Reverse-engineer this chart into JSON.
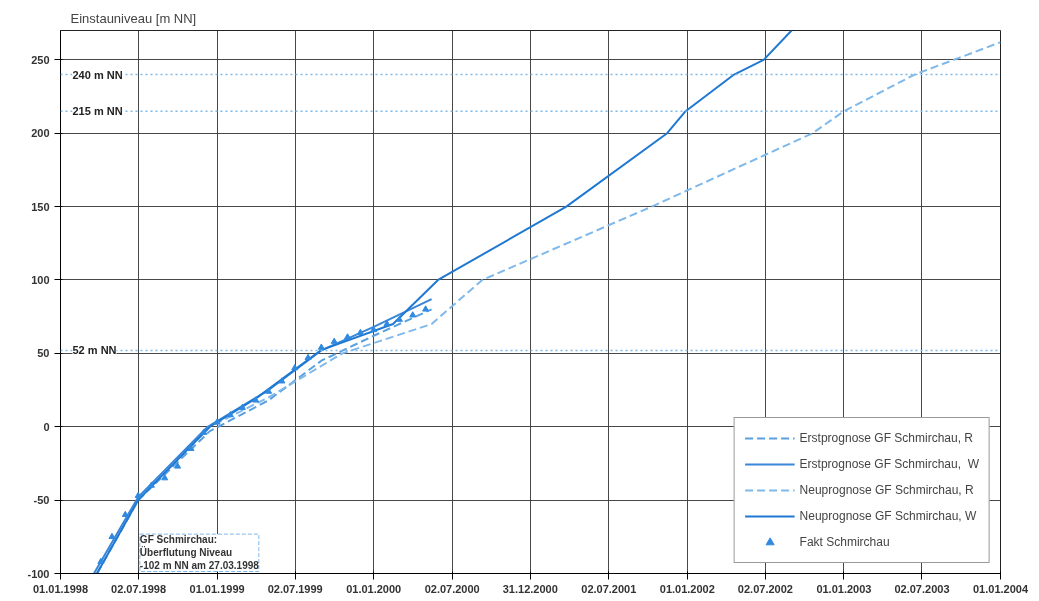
{
  "chart_data": {
    "type": "line",
    "ylabel": "Einstauniveau [m NN]",
    "xlim": [
      "1998-01-01",
      "2004-01-01"
    ],
    "ylim": [
      -100,
      270
    ],
    "xticks": [
      {
        "value": "1998-01-01",
        "label": "01.01.1998"
      },
      {
        "value": "1998-07-02",
        "label": "02.07.1998"
      },
      {
        "value": "1999-01-01",
        "label": "01.01.1999"
      },
      {
        "value": "1999-07-02",
        "label": "02.07.1999"
      },
      {
        "value": "2000-01-01",
        "label": "01.01.2000"
      },
      {
        "value": "2000-07-02",
        "label": "02.07.2000"
      },
      {
        "value": "2000-12-31",
        "label": "31.12.2000"
      },
      {
        "value": "2001-07-02",
        "label": "02.07.2001"
      },
      {
        "value": "2002-01-01",
        "label": "01.01.2002"
      },
      {
        "value": "2002-07-02",
        "label": "02.07.2002"
      },
      {
        "value": "2003-01-01",
        "label": "01.01.2003"
      },
      {
        "value": "2003-07-02",
        "label": "02.07.2003"
      },
      {
        "value": "2004-01-01",
        "label": "01.01.2004"
      }
    ],
    "yticks": [
      -100,
      -50,
      0,
      50,
      100,
      150,
      200,
      250
    ],
    "grid": true,
    "legend": "bottom right",
    "series": [
      {
        "name": "Erstprognose GF Schmirchau, R",
        "color": "#5aa0e0",
        "line_style": "dashed",
        "x": [
          "1998-03-27",
          "1998-07-01",
          "1998-12-15",
          "1999-05-01",
          "1999-09-01",
          "2000-01-01",
          "2000-05-15"
        ],
        "values": [
          -100,
          -50,
          -3,
          18,
          45,
          62,
          80
        ]
      },
      {
        "name": "Erstprognose GF Schmirchau,  W",
        "color": "#3a86d8",
        "line_style": "solid",
        "x": [
          "1998-03-20",
          "1998-07-01",
          "1998-12-10",
          "1999-05-01",
          "1999-09-01",
          "2000-01-01",
          "2000-05-15"
        ],
        "values": [
          -100,
          -48,
          0,
          25,
          52,
          68,
          87
        ]
      },
      {
        "name": "Neuprognose GF Schmirchau, R",
        "color": "#7fb8ea",
        "line_style": "dashed",
        "x": [
          "1998-03-27",
          "1998-07-01",
          "1998-12-15",
          "1999-05-01",
          "1999-10-20",
          "2000-05-15",
          "2000-09-10",
          "2001-10-10",
          "2002-10-20",
          "2003-01-01",
          "2003-06-15",
          "2004-01-01"
        ],
        "values": [
          -100,
          -50,
          0,
          20,
          50,
          70,
          100,
          150,
          200,
          215,
          240,
          262
        ]
      },
      {
        "name": "Neuprognose GF Schmirchau, W",
        "color": "#1f78d1",
        "line_style": "solid",
        "x": [
          "1998-03-27",
          "1998-07-01",
          "1998-12-15",
          "1999-04-05",
          "1999-08-30",
          "2000-02-15",
          "2000-05-30",
          "2001-03-25",
          "2001-11-15",
          "2001-12-28",
          "2002-04-20",
          "2002-06-28",
          "2002-09-01"
        ],
        "values": [
          -100,
          -50,
          0,
          20,
          52,
          70,
          100,
          150,
          200,
          215,
          240,
          250,
          270
        ]
      },
      {
        "name": "Fakt Schmirchau",
        "type": "scatter",
        "marker": "triangle",
        "color": "#2f8ae0",
        "x": [
          "1998-04-05",
          "1998-05-01",
          "1998-06-01",
          "1998-07-01",
          "1998-08-01",
          "1998-09-01",
          "1998-10-01",
          "1998-11-01",
          "1998-12-01",
          "1999-01-01",
          "1999-02-01",
          "1999-03-01",
          "1999-04-01",
          "1999-05-01",
          "1999-06-01",
          "1999-07-01",
          "1999-08-01",
          "1999-09-01",
          "1999-10-01",
          "1999-11-01",
          "1999-12-01",
          "2000-01-01",
          "2000-02-01",
          "2000-03-01",
          "2000-04-01",
          "2000-05-01"
        ],
        "values": [
          -92,
          -75,
          -60,
          -47,
          -40,
          -35,
          -27,
          -15,
          -4,
          3,
          8,
          13,
          18,
          24,
          31,
          40,
          47,
          54,
          58,
          61,
          64,
          66,
          70,
          73,
          76,
          80
        ]
      }
    ],
    "ref_lines": [
      {
        "axis": "y",
        "value": 240,
        "label": "240 m NN",
        "color": "#7fb8ea",
        "line_style": "dotted"
      },
      {
        "axis": "y",
        "value": 215,
        "label": "215 m NN",
        "color": "#7fb8ea",
        "line_style": "dotted"
      },
      {
        "axis": "y",
        "value": 52,
        "label": "52 m NN",
        "color": "#7fb8ea",
        "line_style": "dotted"
      }
    ],
    "annotations": [
      "GF Schmirchau:\nÜberflutung Niveau\n-102 m NN am 27.03.1998"
    ]
  }
}
